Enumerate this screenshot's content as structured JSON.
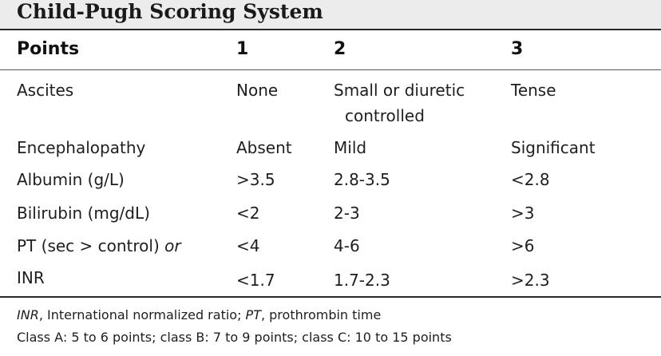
{
  "title": "Child-Pugh Scoring System",
  "header": [
    "Points",
    "1",
    "2",
    "3"
  ],
  "rows": [
    {
      "label": "Ascites",
      "c1": "None",
      "c2_line1": "Small or diuretic",
      "c2_line2": "controlled",
      "c3": "Tense"
    },
    {
      "label": "Encephalopathy",
      "c1": "Absent",
      "c2": "Mild",
      "c3": "Significant"
    },
    {
      "label": "Albumin (g/L)",
      "c1": ">3.5",
      "c2": "2.8-3.5",
      "c3": "<2.8"
    },
    {
      "label": "Bilirubin (mg/dL)",
      "c1": "<2",
      "c2": "2-3",
      "c3": ">3"
    },
    {
      "label_main": "PT (sec > control) ",
      "label_italic": "or",
      "c1": "<4",
      "c2": "4-6",
      "c3": ">6"
    },
    {
      "label": "INR",
      "c1": "<1.7",
      "c2": "1.7-2.3",
      "c3": ">2.3"
    }
  ],
  "footnotes": {
    "abbr1": "INR",
    "abbr1_def": ", International normalized ratio; ",
    "abbr2": "PT",
    "abbr2_def": ", prothrombin time",
    "classes": "Class A: 5 to 6 points; class B: 7 to 9 points; class C: 10 to 15 points"
  }
}
